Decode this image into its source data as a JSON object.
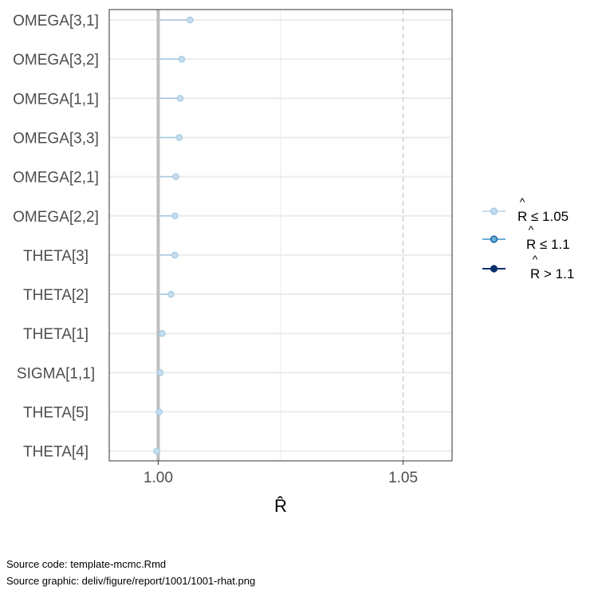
{
  "chart_data": {
    "type": "scatter",
    "style": "lollipop",
    "parameters": [
      "OMEGA[3,1]",
      "OMEGA[3,2]",
      "OMEGA[1,1]",
      "OMEGA[3,3]",
      "OMEGA[2,1]",
      "OMEGA[2,2]",
      "THETA[3]",
      "THETA[2]",
      "THETA[1]",
      "SIGMA[1,1]",
      "THETA[5]",
      "THETA[4]"
    ],
    "values": [
      1.0065,
      1.0048,
      1.0045,
      1.0043,
      1.0036,
      1.0034,
      1.0034,
      1.0026,
      1.0008,
      1.0004,
      1.0002,
      0.9997
    ],
    "xlabel": "R̂",
    "xlim": [
      0.99,
      1.06
    ],
    "xticks": [
      1.0,
      1.05
    ],
    "xtick_labels": [
      "1.00",
      "1.05"
    ],
    "reference_lines": [
      1.0,
      1.05
    ],
    "grid": true,
    "legend_position": "right",
    "legend": [
      {
        "hat": "^",
        "label": "R ≤ 1.05",
        "color": "#c6dbef"
      },
      {
        "hat": "^",
        "label": "R ≤ 1.1",
        "color": "#6baed6"
      },
      {
        "hat": "^",
        "label": "R > 1.1",
        "color": "#08306b"
      }
    ],
    "point_color": "#c6dbef",
    "point_stroke": "#9ecae1"
  },
  "captions": {
    "source_code": "Source code: template-mcmc.Rmd",
    "source_graphic": "Source graphic: deliv/figure/report/1001/1001-rhat.png"
  }
}
